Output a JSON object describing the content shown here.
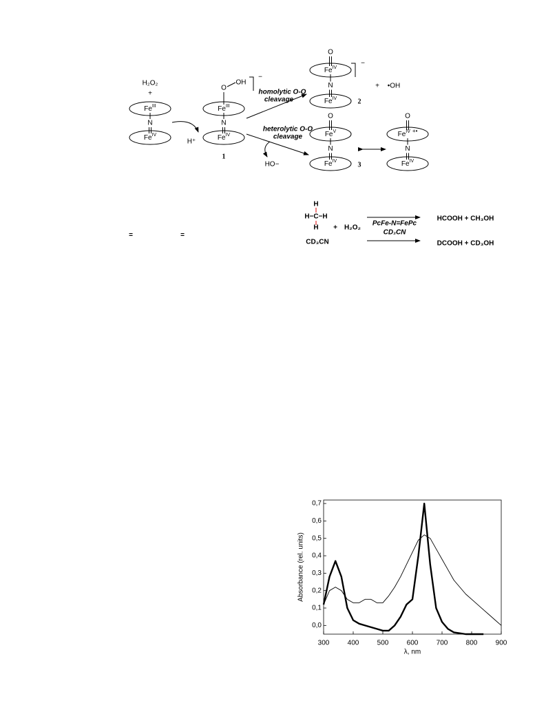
{
  "scheme1": {
    "reactant": {
      "h2o2": "H₂O₂",
      "plus": "+",
      "top": {
        "base": "Fe",
        "sup": "III"
      },
      "bridge": "N",
      "bottom": {
        "base": "Fe",
        "sup": "IV"
      }
    },
    "proton": "H⁺",
    "intermediate": {
      "o": "O",
      "oh": "OH",
      "charge": "−",
      "top": {
        "base": "Fe",
        "sup": "III"
      },
      "bridge": "N",
      "bottom": {
        "base": "Fe",
        "sup": "IV"
      },
      "number": "1"
    },
    "homolytic": {
      "line1": "homolytic O-O",
      "line2": "cleavage"
    },
    "heterolytic": {
      "line1": "heterolytic O-O",
      "line2": "cleavage"
    },
    "hydroxide": "HO−",
    "product2": {
      "o": "O",
      "charge": "−",
      "top": {
        "base": "Fe",
        "sup": "IV"
      },
      "bridge": "N",
      "bottom": {
        "base": "Fe",
        "sup": "IV"
      },
      "number": "2"
    },
    "plus": "+",
    "radical": "•OH",
    "product3": {
      "o": "O",
      "top": {
        "base": "Fe",
        "sup": "V"
      },
      "bridge": "N",
      "bottom": {
        "base": "Fe",
        "sup": "IV"
      },
      "number": "3"
    },
    "resonance": {
      "o": "O",
      "top": {
        "base": "Fe",
        "sup": "IV",
        "charge": "+•"
      },
      "bridge": "N",
      "bottom": {
        "base": "Fe",
        "sup": "IV"
      }
    }
  },
  "scheme2": {
    "methane": {
      "top": "H",
      "middle": "H−C−H",
      "bottom": "H"
    },
    "solvent": "CD₃CN",
    "plus": "+",
    "oxidant": "H₂O₂",
    "catalyst": "PcFe-N=FePc",
    "medium": "CD₃CN",
    "products_h": "HCOOH  +  CH₃OH",
    "products_d": "DCOOH  +  CD₃OH"
  },
  "stray": [
    "=",
    "="
  ],
  "chart_data": {
    "type": "line",
    "x_label": "λ, nm",
    "y_label": "Absorbance (rel. units)",
    "x": [
      300,
      320,
      340,
      360,
      380,
      400,
      420,
      440,
      460,
      480,
      500,
      520,
      540,
      560,
      580,
      600,
      620,
      640,
      660,
      680,
      700,
      720,
      740,
      760,
      780,
      800,
      820,
      840,
      860,
      880,
      900
    ],
    "series": [
      {
        "color": "#000000",
        "width": 2.4,
        "values": [
          0.12,
          0.28,
          0.37,
          0.28,
          0.1,
          0.03,
          0.01,
          0.0,
          -0.01,
          -0.02,
          -0.03,
          -0.03,
          0.0,
          0.05,
          0.12,
          0.15,
          0.4,
          0.7,
          0.35,
          0.1,
          0.02,
          -0.02,
          -0.04,
          -0.045,
          -0.05,
          -0.05,
          -0.05,
          -0.05,
          null,
          null,
          null
        ]
      },
      {
        "color": "#000000",
        "width": 0.9,
        "values": [
          0.12,
          0.2,
          0.22,
          0.2,
          0.15,
          0.13,
          0.13,
          0.15,
          0.15,
          0.13,
          0.13,
          0.17,
          0.22,
          0.28,
          0.35,
          0.42,
          0.49,
          0.52,
          0.5,
          0.44,
          0.38,
          0.32,
          0.26,
          0.22,
          0.18,
          0.15,
          0.12,
          0.09,
          0.06,
          0.03,
          0.0
        ]
      }
    ],
    "xlim": [
      300,
      900
    ],
    "ylim": [
      -0.05,
      0.72
    ],
    "xticks": [
      300,
      400,
      500,
      600,
      700,
      800,
      900
    ],
    "yticks": [
      {
        "value": 0.0,
        "label": "0,0"
      },
      {
        "value": 0.1,
        "label": "0,1"
      },
      {
        "value": 0.2,
        "label": "0,2"
      },
      {
        "value": 0.3,
        "label": "0,3"
      },
      {
        "value": 0.4,
        "label": "0,4"
      },
      {
        "value": 0.5,
        "label": "0,5"
      },
      {
        "value": 0.6,
        "label": "0,6"
      },
      {
        "value": 0.7,
        "label": "0,7"
      }
    ]
  }
}
